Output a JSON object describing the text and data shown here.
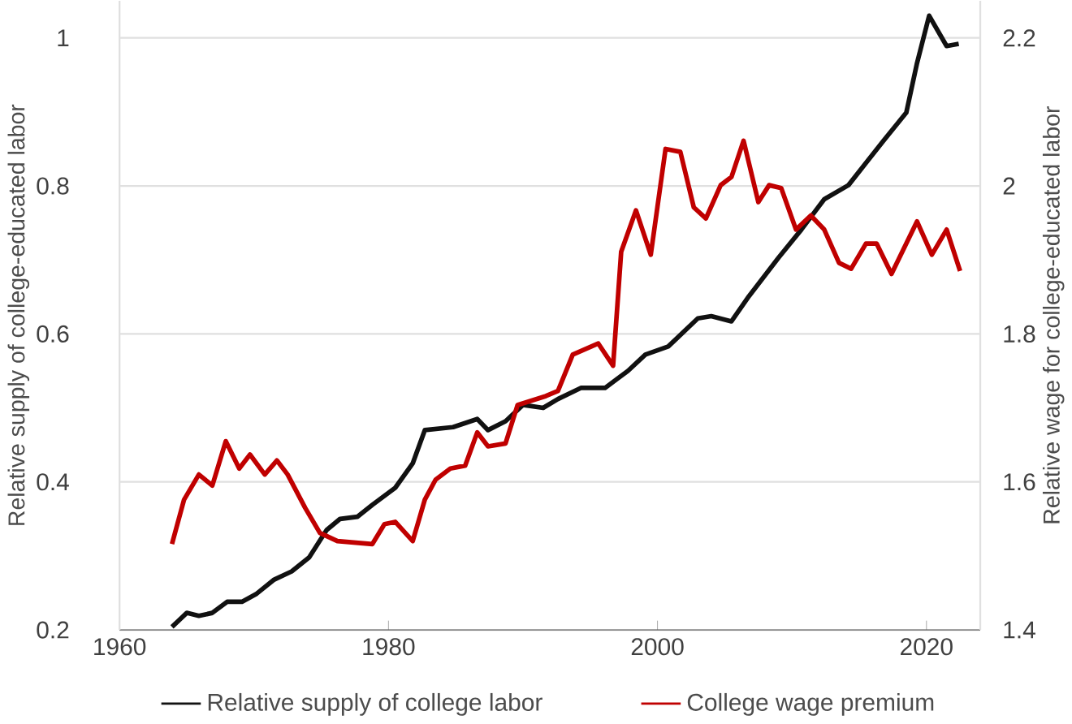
{
  "chart_data": {
    "type": "line",
    "ylabel": "Relative supply of college-educated labor",
    "y2label": "Relative wage for college-educated labor",
    "xlim": [
      1960,
      2024
    ],
    "xticks": [
      1960,
      1980,
      2000,
      2020
    ],
    "ylim": [
      0.2,
      1.05
    ],
    "yticks": [
      {
        "value": 0.2,
        "label": "0.2"
      },
      {
        "value": 0.4,
        "label": "0.4"
      },
      {
        "value": 0.6,
        "label": "0.6"
      },
      {
        "value": 0.8,
        "label": "0.8"
      },
      {
        "value": 1,
        "label": "1"
      }
    ],
    "y2lim": [
      1.4,
      2.25
    ],
    "y2ticks": [
      {
        "value": 1.4,
        "label": "1.4"
      },
      {
        "value": 1.6,
        "label": "1.6"
      },
      {
        "value": 1.8,
        "label": "1.8"
      },
      {
        "value": 2,
        "label": "2"
      },
      {
        "value": 2.2,
        "label": "2.2"
      }
    ],
    "grid": "y",
    "legend": "bottom",
    "line_style": "solid",
    "series": [
      {
        "name": "Relative supply of college labor",
        "color": "#111111",
        "x": [
          1963.9,
          1965.0,
          1965.9,
          1966.9,
          1968.0,
          1969.1,
          1970.2,
          1971.5,
          1972.8,
          1974.1,
          1975.4,
          1976.4,
          1977.7,
          1978.8,
          1980.5,
          1981.8,
          1982.7,
          1984.8,
          1986.6,
          1987.4,
          1988.7,
          1990.0,
          1991.5,
          1992.6,
          1994.3,
          1996.1,
          1997.8,
          1999.1,
          2000.8,
          2003.0,
          2004.0,
          2005.5,
          2006.8,
          2009.0,
          2010.7,
          2012.4,
          2014.2,
          2015.5,
          2016.8,
          2018.5,
          2019.3,
          2020.2,
          2021.5,
          2022.4
        ],
        "values": [
          0.204,
          0.223,
          0.219,
          0.223,
          0.238,
          0.238,
          0.249,
          0.268,
          0.279,
          0.298,
          0.335,
          0.35,
          0.353,
          0.369,
          0.392,
          0.425,
          0.47,
          0.474,
          0.485,
          0.47,
          0.482,
          0.504,
          0.5,
          0.512,
          0.527,
          0.527,
          0.55,
          0.572,
          0.583,
          0.621,
          0.624,
          0.617,
          0.651,
          0.703,
          0.741,
          0.782,
          0.801,
          0.831,
          0.861,
          0.899,
          0.966,
          1.03,
          0.989,
          0.992
        ]
      },
      {
        "name": "College wage premium",
        "color": "#c00000",
        "axis": "y2",
        "x": [
          1963.9,
          1964.8,
          1965.9,
          1966.9,
          1967.9,
          1968.9,
          1969.7,
          1970.8,
          1971.7,
          1972.5,
          1973.8,
          1974.9,
          1976.2,
          1978.8,
          1979.7,
          1980.5,
          1981.8,
          1982.7,
          1983.5,
          1984.6,
          1985.7,
          1986.6,
          1987.4,
          1988.7,
          1989.6,
          1991.7,
          1992.6,
          1993.7,
          1995.6,
          1996.7,
          1997.3,
          1998.4,
          1999.5,
          2000.6,
          2001.7,
          2002.7,
          2003.6,
          2004.7,
          2005.5,
          2006.4,
          2007.5,
          2008.3,
          2009.2,
          2010.3,
          2011.4,
          2012.4,
          2013.5,
          2014.4,
          2015.5,
          2016.3,
          2017.4,
          2019.3,
          2020.4,
          2021.5,
          2022.5
        ],
        "values": [
          1.516,
          1.576,
          1.61,
          1.595,
          1.655,
          1.618,
          1.637,
          1.61,
          1.629,
          1.61,
          1.565,
          1.531,
          1.52,
          1.516,
          1.543,
          1.546,
          1.52,
          1.576,
          1.603,
          1.618,
          1.622,
          1.667,
          1.648,
          1.652,
          1.704,
          1.716,
          1.723,
          1.772,
          1.787,
          1.757,
          1.911,
          1.967,
          1.907,
          2.05,
          2.046,
          1.971,
          1.956,
          2.001,
          2.012,
          2.061,
          1.978,
          2.001,
          1.997,
          1.941,
          1.96,
          1.941,
          1.896,
          1.888,
          1.922,
          1.922,
          1.881,
          1.952,
          1.907,
          1.941,
          1.885
        ]
      }
    ]
  }
}
